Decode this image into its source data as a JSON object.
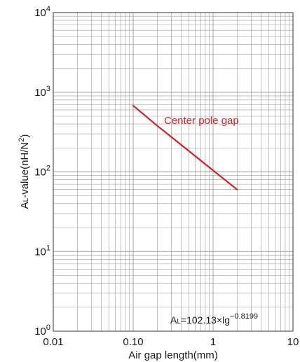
{
  "chart_data": {
    "type": "line",
    "xscale": "log",
    "yscale": "log",
    "xlim": [
      0.01,
      10
    ],
    "ylim": [
      1,
      10000
    ],
    "grid": true,
    "xlabel": "Air gap length(mm)",
    "ylabel_main": "A",
    "ylabel_sub": "L",
    "ylabel_rest": "-value(nH/N",
    "ylabel_sup": "2",
    "ylabel_end": ")",
    "x_ticks": [
      {
        "value": 0.01,
        "label": "0.01"
      },
      {
        "value": 0.1,
        "label": "0.10"
      },
      {
        "value": 1,
        "label": "1"
      },
      {
        "value": 10,
        "label": "10"
      }
    ],
    "y_ticks": [
      {
        "value": 1,
        "base": "10",
        "exp": "0"
      },
      {
        "value": 10,
        "base": "10",
        "exp": "1"
      },
      {
        "value": 100,
        "base": "10",
        "exp": "2"
      },
      {
        "value": 1000,
        "base": "10",
        "exp": "3"
      },
      {
        "value": 10000,
        "base": "10",
        "exp": "4"
      }
    ],
    "series": [
      {
        "name": "Center pole gap",
        "color": "#d42027",
        "x": [
          0.1,
          0.2,
          2
        ],
        "y": [
          680,
          380,
          60
        ]
      }
    ],
    "annotation": {
      "prefix": "A",
      "sub": "L",
      "text": "=102.13×lg",
      "sup": "−0.8199"
    }
  }
}
